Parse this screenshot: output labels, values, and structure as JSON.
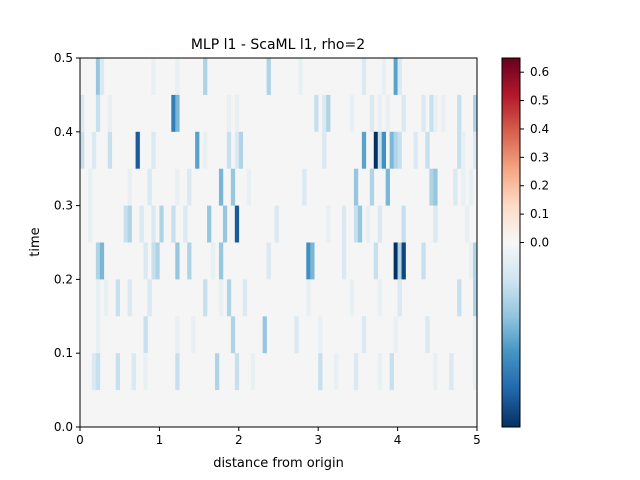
{
  "chart_data": {
    "type": "heatmap",
    "title": "MLP l1 - ScaML l1, rho=2",
    "xlabel": "distance from origin",
    "ylabel": "time",
    "xlim": [
      0,
      5
    ],
    "ylim": [
      0,
      0.5
    ],
    "x_ticks": [
      "0",
      "1",
      "2",
      "3",
      "4",
      "5"
    ],
    "y_ticks": [
      "0.0",
      "0.1",
      "0.2",
      "0.3",
      "0.4",
      "0.5"
    ],
    "colorbar": {
      "colormap": "RdBu_r",
      "vmin": -0.65,
      "vmax": 0.65,
      "ticks": [
        "0.0",
        "0.1",
        "0.2",
        "0.3",
        "0.4",
        "0.5",
        "0.6"
      ],
      "tick_values": [
        0.0,
        0.1,
        0.2,
        0.3,
        0.4,
        0.5,
        0.6
      ]
    },
    "n_columns": 100,
    "time_rows": [
      0.05,
      0.1,
      0.15,
      0.2,
      0.25,
      0.3,
      0.35,
      0.4,
      0.45,
      0.5
    ],
    "columns": [
      {
        "t": 0.5,
        "values": {
          "4": -0.25,
          "5": -0.1,
          "18": -0.05,
          "24": -0.05,
          "31": -0.2,
          "47": -0.2,
          "55": -0.05,
          "71": -0.1,
          "76": -0.05,
          "79": -0.35,
          "80": -0.1
        }
      },
      {
        "t": 0.45,
        "values": {
          "0": -0.1,
          "4": -0.15,
          "7": -0.05,
          "23": -0.45,
          "24": -0.3,
          "37": -0.05,
          "39": -0.05,
          "59": -0.15,
          "61": -0.1,
          "62": -0.2,
          "68": -0.05,
          "73": -0.1,
          "75": -0.05,
          "77": -0.05,
          "81": -0.1,
          "86": -0.1,
          "88": -0.15,
          "89": -0.05,
          "91": -0.05,
          "95": -0.15,
          "99": -0.2
        }
      },
      {
        "t": 0.4,
        "values": {
          "0": -0.15,
          "3": -0.1,
          "7": -0.15,
          "14": -0.55,
          "18": -0.1,
          "29": -0.35,
          "31": -0.05,
          "37": -0.15,
          "39": -0.1,
          "40": -0.2,
          "61": -0.1,
          "71": -0.35,
          "74": -0.65,
          "75": -0.15,
          "76": -0.4,
          "78": -0.3,
          "79": -0.2,
          "80": -0.15,
          "84": -0.1,
          "87": -0.15,
          "95": -0.15,
          "96": -0.05,
          "99": -0.1
        }
      },
      {
        "t": 0.35,
        "values": {
          "2": -0.05,
          "12": -0.05,
          "17": -0.1,
          "24": -0.05,
          "27": -0.1,
          "35": -0.3,
          "38": -0.25,
          "42": -0.05,
          "56": -0.1,
          "69": -0.25,
          "73": -0.2,
          "77": -0.3,
          "88": -0.2,
          "89": -0.25,
          "94": -0.1,
          "96": -0.05,
          "98": -0.05
        }
      },
      {
        "t": 0.3,
        "values": {
          "2": -0.05,
          "11": -0.15,
          "12": -0.2,
          "15": -0.1,
          "18": -0.1,
          "20": -0.2,
          "23": -0.15,
          "26": -0.1,
          "32": -0.25,
          "36": -0.25,
          "39": -0.55,
          "49": -0.1,
          "62": -0.05,
          "66": -0.1,
          "69": -0.15,
          "70": -0.25,
          "72": -0.05,
          "75": -0.1,
          "81": -0.15,
          "89": -0.1,
          "97": -0.05
        }
      },
      {
        "t": 0.25,
        "values": {
          "4": -0.2,
          "5": -0.3,
          "16": -0.1,
          "18": -0.15,
          "19": -0.2,
          "24": -0.25,
          "27": -0.2,
          "33": -0.05,
          "35": -0.25,
          "47": -0.1,
          "57": -0.4,
          "58": -0.3,
          "66": -0.1,
          "74": -0.15,
          "79": -0.7,
          "80": -0.2,
          "81": -0.6,
          "86": -0.15,
          "98": -0.05,
          "99": -0.2
        }
      },
      {
        "t": 0.2,
        "values": {
          "4": -0.05,
          "6": -0.05,
          "9": -0.15,
          "12": -0.1,
          "17": -0.1,
          "31": -0.15,
          "35": -0.05,
          "37": -0.2,
          "41": -0.1,
          "57": -0.05,
          "68": -0.05,
          "75": -0.05,
          "80": -0.1,
          "95": -0.15,
          "99": -0.2
        }
      },
      {
        "t": 0.15,
        "values": {
          "4": -0.05,
          "16": -0.15,
          "24": -0.05,
          "28": -0.05,
          "38": -0.2,
          "46": -0.25,
          "54": -0.1,
          "60": -0.05,
          "71": -0.1,
          "79": -0.05,
          "87": -0.1,
          "99": -0.05
        }
      },
      {
        "t": 0.1,
        "values": {
          "3": -0.1,
          "4": -0.15,
          "9": -0.15,
          "13": -0.1,
          "16": -0.05,
          "24": -0.15,
          "34": -0.2,
          "39": -0.15,
          "43": -0.05,
          "60": -0.15,
          "64": -0.05,
          "69": -0.1,
          "75": -0.05,
          "78": -0.15,
          "89": -0.05,
          "93": -0.1,
          "99": -0.05
        }
      }
    ]
  }
}
